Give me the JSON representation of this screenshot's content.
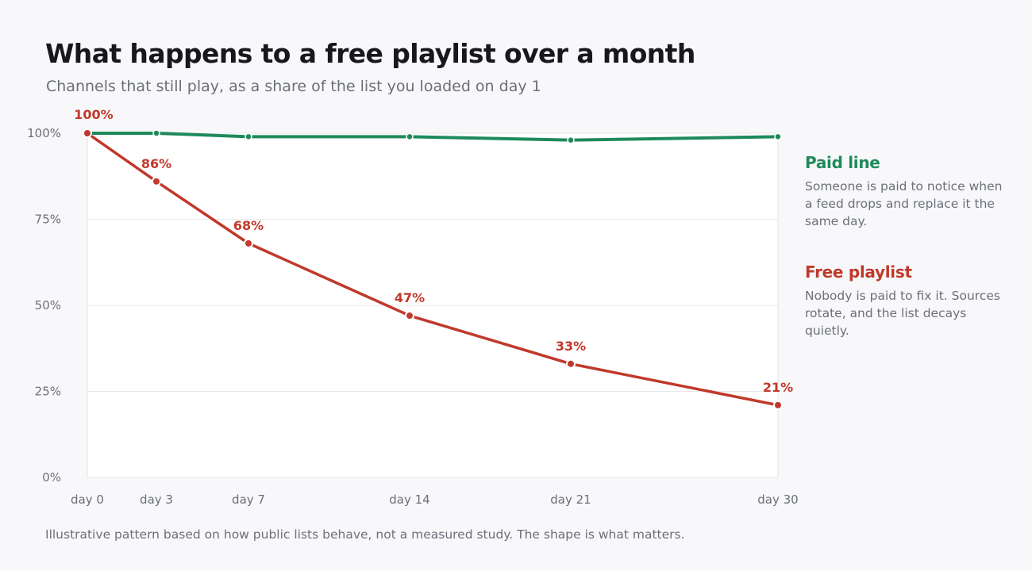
{
  "chart_data": {
    "type": "line",
    "title": "What happens to a free playlist over a month",
    "subtitle": "Channels that still play, as a share of the list you loaded on day 1",
    "categories": [
      "day 0",
      "day 3",
      "day 7",
      "day 14",
      "day 21",
      "day 30"
    ],
    "x": [
      0,
      3,
      7,
      14,
      21,
      30
    ],
    "ylim": [
      0,
      100
    ],
    "yticks": [
      0,
      25,
      50,
      75,
      100
    ],
    "ytick_labels": [
      "0%",
      "25%",
      "50%",
      "75%",
      "100%"
    ],
    "grid": true,
    "legend_position": "right",
    "series": [
      {
        "name": "Paid line",
        "color": "#1e8a5a",
        "description": "Someone is paid to notice when a feed drops and replace it the same day.",
        "values": [
          100,
          100,
          99,
          99,
          98,
          99
        ],
        "data_labels": []
      },
      {
        "name": "Free playlist",
        "color": "#c0392b",
        "description": "Nobody is paid to fix it. Sources rotate, and the list decays quietly.",
        "values": [
          100,
          86,
          68,
          47,
          33,
          21
        ],
        "data_labels": [
          "100%",
          "86%",
          "68%",
          "47%",
          "33%",
          "21%"
        ]
      }
    ],
    "footnote": "Illustrative pattern based on how public lists behave, not a measured study. The shape is what matters."
  }
}
